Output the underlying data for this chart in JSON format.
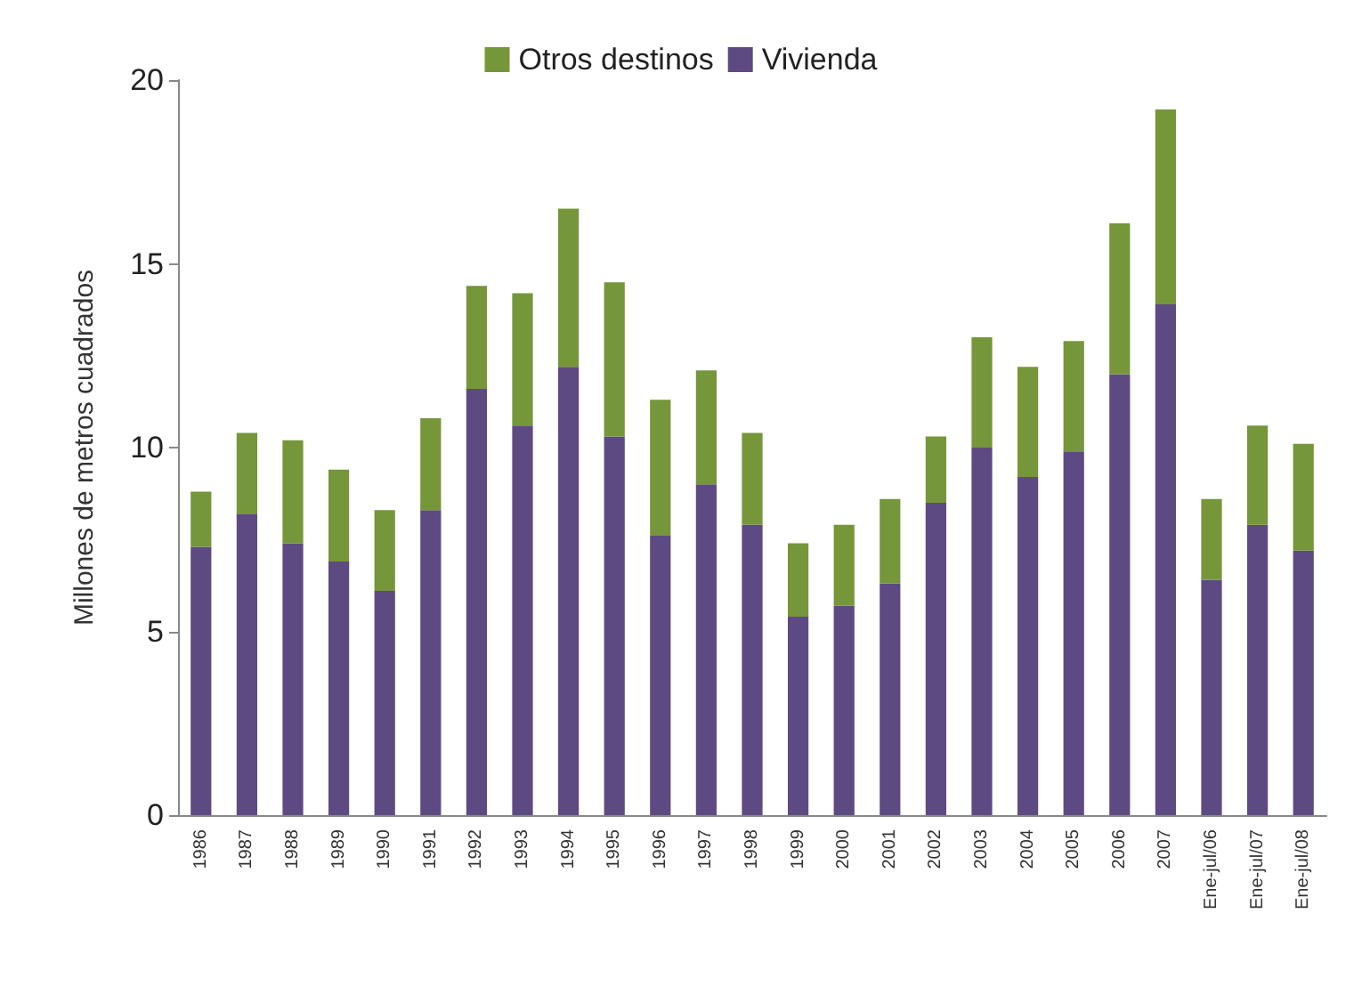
{
  "chart_data": {
    "type": "bar",
    "stacked": true,
    "ylabel": "Millones de metros cuadrados",
    "categories": [
      "1986",
      "1987",
      "1988",
      "1989",
      "1990",
      "1991",
      "1992",
      "1993",
      "1994",
      "1995",
      "1996",
      "1997",
      "1998",
      "1999",
      "2000",
      "2001",
      "2002",
      "2003",
      "2004",
      "2005",
      "2006",
      "2007",
      "Ene-jul/06",
      "Ene-jul/07",
      "Ene-jul/08"
    ],
    "series": [
      {
        "name": "Vivienda",
        "color": "#5e4a82",
        "values": [
          7.3,
          8.2,
          7.4,
          6.9,
          6.1,
          8.3,
          11.6,
          10.6,
          12.2,
          10.3,
          7.6,
          9.0,
          7.9,
          5.4,
          5.7,
          6.3,
          8.5,
          10.0,
          9.2,
          9.9,
          12.0,
          13.9,
          6.4,
          7.9,
          7.2
        ]
      },
      {
        "name": "Otros destinos",
        "color": "#76963a",
        "values": [
          1.5,
          2.2,
          2.8,
          2.5,
          2.2,
          2.5,
          2.8,
          3.6,
          4.3,
          4.2,
          3.7,
          3.1,
          2.5,
          2.0,
          2.2,
          2.3,
          1.8,
          3.0,
          3.0,
          3.0,
          4.1,
          5.3,
          2.2,
          2.7,
          2.9
        ]
      }
    ],
    "ylim": [
      0,
      20
    ],
    "yticks": [
      0,
      5,
      10,
      15,
      20
    ],
    "grid": false,
    "legend": "top"
  }
}
